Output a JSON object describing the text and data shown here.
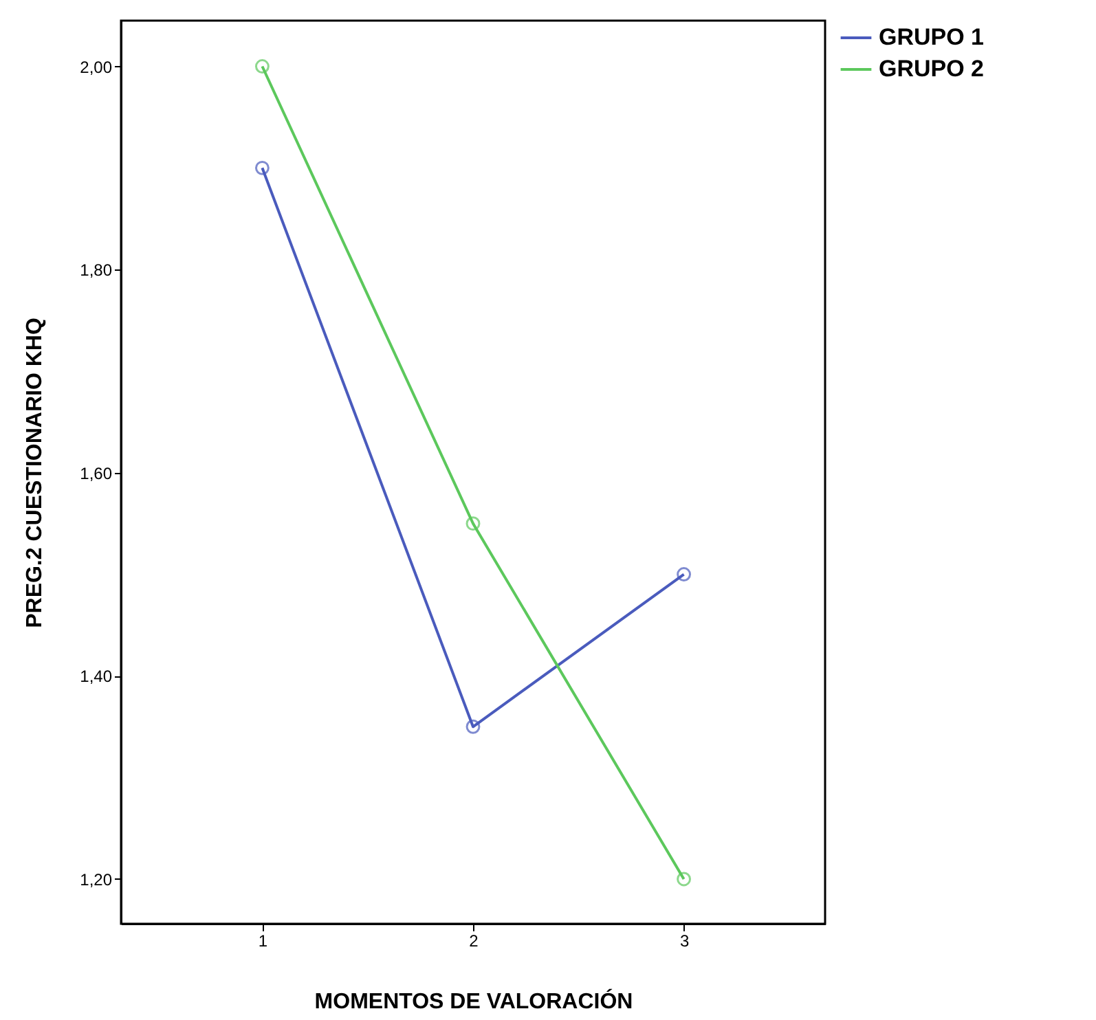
{
  "chart_data": {
    "type": "line",
    "xlabel": "MOMENTOS DE VALORACIÓN",
    "ylabel": "PREG.2 CUESTIONARIO KHQ",
    "categories": [
      "1",
      "2",
      "3"
    ],
    "series": [
      {
        "name": "GRUPO 1",
        "color": "#4a5bbd",
        "values": [
          1.9,
          1.35,
          1.5
        ]
      },
      {
        "name": "GRUPO 2",
        "color": "#5cc85c",
        "values": [
          2.0,
          1.55,
          1.2
        ]
      }
    ],
    "ylim": [
      1.156,
      2.045
    ],
    "yticks": [
      {
        "value": 1.2,
        "label": "1,20"
      },
      {
        "value": 1.4,
        "label": "1,40"
      },
      {
        "value": 1.6,
        "label": "1,60"
      },
      {
        "value": 1.8,
        "label": "1,80"
      },
      {
        "value": 2.0,
        "label": "2,00"
      }
    ],
    "marker": "circle",
    "legend": "top right",
    "grid": false
  }
}
